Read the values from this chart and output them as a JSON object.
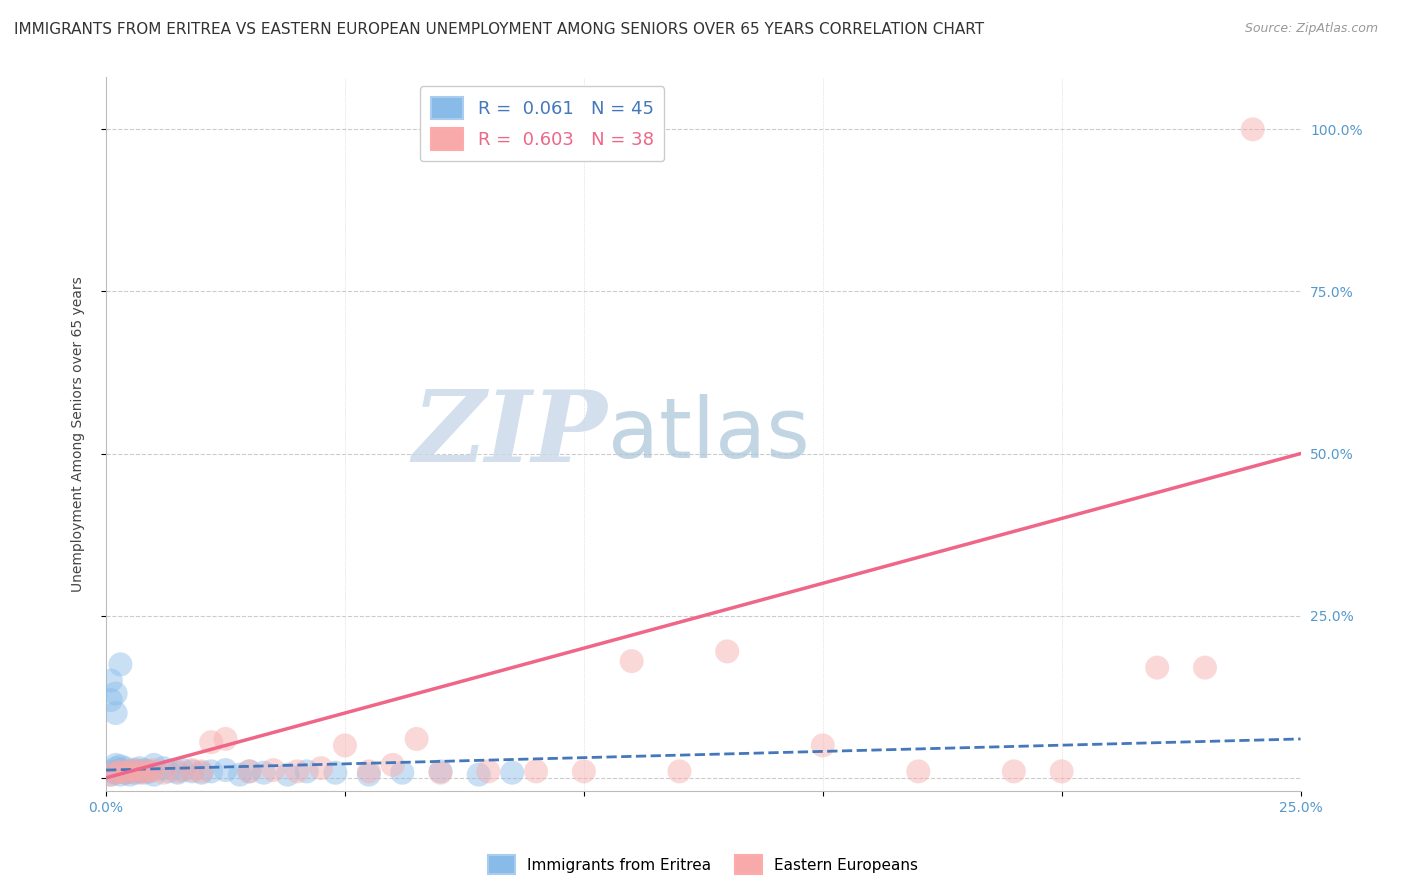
{
  "title": "IMMIGRANTS FROM ERITREA VS EASTERN EUROPEAN UNEMPLOYMENT AMONG SENIORS OVER 65 YEARS CORRELATION CHART",
  "source": "Source: ZipAtlas.com",
  "ylabel": "Unemployment Among Seniors over 65 years",
  "xlim": [
    0,
    0.25
  ],
  "ylim": [
    -0.02,
    1.08
  ],
  "xticks": [
    0.0,
    0.05,
    0.1,
    0.15,
    0.2,
    0.25
  ],
  "yticks": [
    0.0,
    0.25,
    0.5,
    0.75,
    1.0
  ],
  "ytick_labels_right": [
    "",
    "25.0%",
    "50.0%",
    "75.0%",
    "100.0%"
  ],
  "xtick_labels": [
    "0.0%",
    "",
    "",
    "",
    "",
    "25.0%"
  ],
  "blue_scatter_x": [
    0.001,
    0.001,
    0.002,
    0.002,
    0.002,
    0.003,
    0.003,
    0.003,
    0.004,
    0.004,
    0.005,
    0.005,
    0.006,
    0.006,
    0.007,
    0.007,
    0.008,
    0.008,
    0.009,
    0.01,
    0.01,
    0.012,
    0.013,
    0.015,
    0.016,
    0.018,
    0.02,
    0.022,
    0.025,
    0.028,
    0.03,
    0.033,
    0.038,
    0.042,
    0.048,
    0.055,
    0.062,
    0.07,
    0.078,
    0.085,
    0.001,
    0.002,
    0.003,
    0.001,
    0.002
  ],
  "blue_scatter_y": [
    0.005,
    0.01,
    0.008,
    0.015,
    0.02,
    0.005,
    0.012,
    0.018,
    0.008,
    0.015,
    0.005,
    0.01,
    0.008,
    0.012,
    0.01,
    0.015,
    0.012,
    0.008,
    0.01,
    0.005,
    0.02,
    0.015,
    0.01,
    0.008,
    0.012,
    0.01,
    0.008,
    0.01,
    0.012,
    0.005,
    0.01,
    0.008,
    0.005,
    0.01,
    0.008,
    0.005,
    0.008,
    0.01,
    0.005,
    0.008,
    0.15,
    0.13,
    0.175,
    0.12,
    0.1
  ],
  "pink_scatter_x": [
    0.001,
    0.002,
    0.003,
    0.004,
    0.005,
    0.006,
    0.007,
    0.008,
    0.009,
    0.01,
    0.012,
    0.015,
    0.018,
    0.02,
    0.022,
    0.025,
    0.03,
    0.035,
    0.04,
    0.045,
    0.05,
    0.055,
    0.06,
    0.065,
    0.07,
    0.08,
    0.09,
    0.1,
    0.11,
    0.12,
    0.13,
    0.15,
    0.17,
    0.19,
    0.2,
    0.22,
    0.23,
    0.24
  ],
  "pink_scatter_y": [
    0.005,
    0.008,
    0.01,
    0.008,
    0.01,
    0.012,
    0.008,
    0.01,
    0.01,
    0.012,
    0.008,
    0.01,
    0.012,
    0.01,
    0.055,
    0.06,
    0.01,
    0.012,
    0.01,
    0.015,
    0.05,
    0.01,
    0.02,
    0.06,
    0.008,
    0.01,
    0.01,
    0.01,
    0.18,
    0.01,
    0.195,
    0.05,
    0.01,
    0.01,
    0.01,
    0.17,
    0.17,
    1.0
  ],
  "blue_line_x": [
    0.0,
    0.25
  ],
  "blue_line_y": [
    0.012,
    0.06
  ],
  "pink_line_x": [
    0.0,
    0.25
  ],
  "pink_line_y": [
    0.0,
    0.5
  ],
  "scatter_size": 300,
  "scatter_alpha": 0.45,
  "watermark_zip": "ZIP",
  "watermark_atlas": "atlas",
  "watermark_color_zip": "#C8D8E8",
  "watermark_color_atlas": "#A8C4D8",
  "grid_color": "#CCCCCC",
  "background_color": "#FFFFFF",
  "title_fontsize": 11,
  "axis_label_fontsize": 10,
  "tick_fontsize": 10,
  "legend_fontsize": 13,
  "blue_color": "#88BBE8",
  "pink_color": "#F8AAAA",
  "blue_line_color": "#4477BB",
  "pink_line_color": "#EE6688"
}
